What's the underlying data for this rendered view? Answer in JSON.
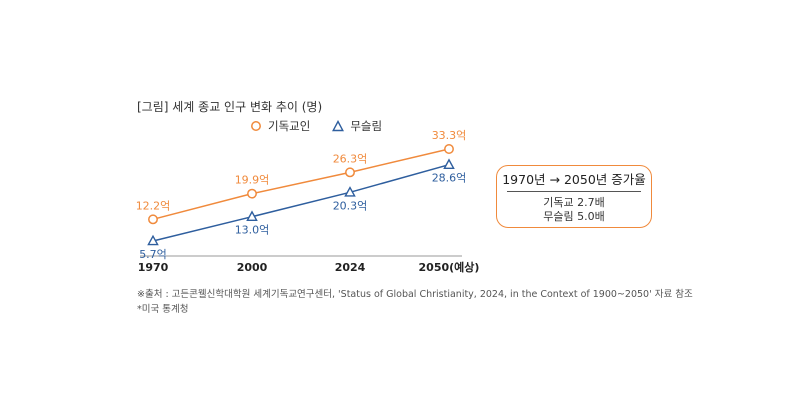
{
  "title": "[그림] 세계 종교 인구 변화 추이 (명)",
  "source": "※출처 : 고든콘웰신학대학원 세계기독교연구센터, 'Status of Global Christianity, 2024, in the Context of 1900~2050' 자료 참조",
  "note": "*미국 통계청",
  "summary": {
    "heading": "1970년 → 2050년 증가율",
    "lines": [
      "기독교 2.7배",
      "무슬림 5.0배"
    ]
  },
  "colors": {
    "christian": "#F08A3C",
    "muslim": "#2E5E9E",
    "axis": "#999999"
  },
  "chart_data": {
    "type": "line",
    "categories": [
      "1970",
      "2000",
      "2024",
      "2050(예상)"
    ],
    "series": [
      {
        "name": "기독교인",
        "values": [
          12.2,
          19.9,
          26.3,
          33.3
        ],
        "labels": [
          "12.2억",
          "19.9억",
          "26.3억",
          "33.3억"
        ],
        "marker": "circle"
      },
      {
        "name": "무슬림",
        "values": [
          5.7,
          13.0,
          20.3,
          28.6
        ],
        "labels": [
          "5.7억",
          "13.0억",
          "20.3억",
          "28.6억"
        ],
        "marker": "triangle"
      }
    ],
    "ylim": [
      3,
      36
    ],
    "legend": "top"
  }
}
